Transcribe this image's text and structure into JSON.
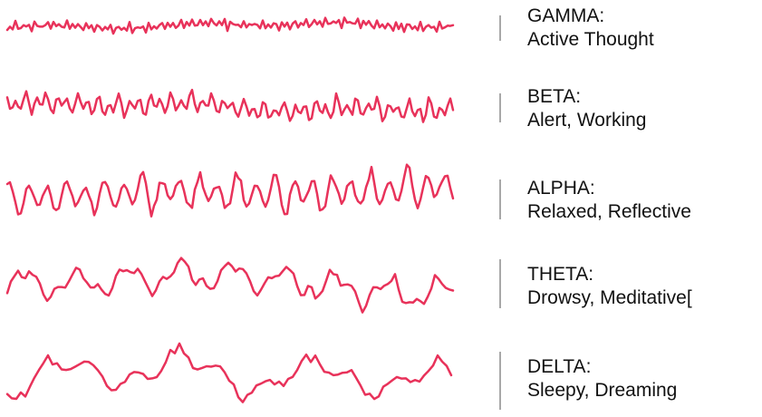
{
  "wave_color": "#e8325a",
  "scale_bar_color": "#8a8a8a",
  "bands": [
    {
      "name": "GAMMA:",
      "description": "Active Thought"
    },
    {
      "name": "BETA:",
      "description": "Alert, Working"
    },
    {
      "name": "ALPHA:",
      "description": "Relaxed, Reflective"
    },
    {
      "name": "THETA:",
      "description": "Drowsy, Meditative["
    },
    {
      "name": "DELTA:",
      "description": "Sleepy, Dreaming"
    }
  ]
}
